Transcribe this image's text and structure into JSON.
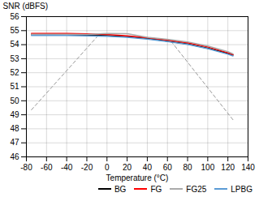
{
  "chart_data": {
    "type": "line",
    "xlabel": "Temperature (°C)",
    "ylabel": "SNR (dBFS)",
    "xlim": [
      -80,
      140
    ],
    "ylim": [
      46,
      56
    ],
    "xticks": [
      -80,
      -60,
      -40,
      -20,
      0,
      20,
      40,
      60,
      80,
      100,
      120,
      140
    ],
    "yticks": [
      46,
      47,
      48,
      49,
      50,
      51,
      52,
      53,
      54,
      55,
      56
    ],
    "grid": true,
    "legend": "lower right",
    "series": [
      {
        "color": "#999999",
        "line_style": "dashed",
        "x": [
          -75,
          -10
        ],
        "values": [
          49.35,
          54.55
        ]
      },
      {
        "color": "#999999",
        "line_style": "dashed",
        "x": [
          125,
          63
        ],
        "values": [
          48.65,
          54.3
        ]
      },
      {
        "name": "BG",
        "color": "#000000",
        "x": [
          -75,
          -60,
          -40,
          -20,
          0,
          20,
          40,
          60,
          80,
          100,
          120,
          125
        ],
        "values": [
          54.72,
          54.72,
          54.7,
          54.68,
          54.64,
          54.57,
          54.44,
          54.25,
          54.05,
          53.75,
          53.38,
          53.25
        ]
      },
      {
        "name": "FG",
        "color": "#ff0000",
        "x": [
          -75,
          -60,
          -40,
          -20,
          0,
          20,
          40,
          60,
          80,
          100,
          120,
          125
        ],
        "values": [
          54.8,
          54.8,
          54.8,
          54.77,
          54.73,
          54.63,
          54.5,
          54.32,
          54.14,
          53.84,
          53.42,
          53.3
        ]
      },
      {
        "name": "FG25",
        "color": "#aaaaaa",
        "x": [
          -75,
          -60,
          -40,
          -20,
          0,
          20,
          40,
          60,
          80,
          100,
          120,
          125
        ],
        "values": [
          54.75,
          54.75,
          54.75,
          54.73,
          54.8,
          54.78,
          54.52,
          54.38,
          54.2,
          53.9,
          53.5,
          53.35
        ]
      },
      {
        "name": "LPBG",
        "color": "#5b9bd5",
        "x": [
          -75,
          -60,
          -40,
          -20,
          0,
          20,
          40,
          60,
          80,
          100,
          120,
          125
        ],
        "values": [
          54.65,
          54.67,
          54.65,
          54.63,
          54.6,
          54.52,
          54.4,
          54.22,
          54.02,
          53.72,
          53.32,
          53.2
        ]
      }
    ]
  }
}
